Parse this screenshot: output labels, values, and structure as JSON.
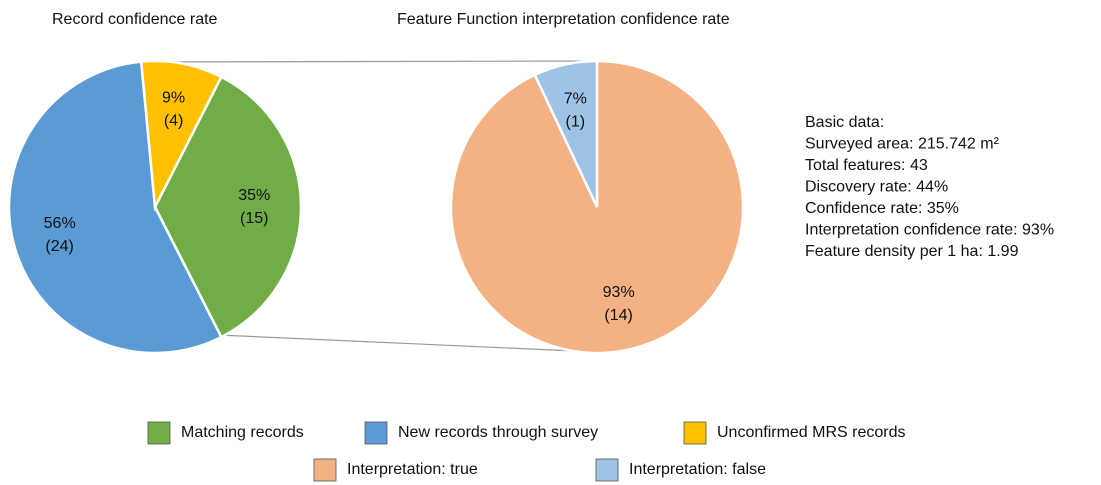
{
  "chart_data": [
    {
      "type": "pie",
      "title": "Record confidence rate",
      "categories": [
        "Matching records",
        "New records through survey",
        "Unconfirmed MRS records"
      ],
      "values": [
        35,
        56,
        9
      ],
      "value_labels": [
        "35%",
        "56%",
        "9%"
      ],
      "count_labels": [
        "(15)",
        "(24)",
        "(4)"
      ],
      "colors": [
        "#70ad47",
        "#5b9bd5",
        "#ffc000"
      ]
    },
    {
      "type": "pie",
      "title": "Feature Function interpretation confidence rate",
      "categories": [
        "Interpretation: true",
        "Interpretation: false"
      ],
      "values": [
        93,
        7
      ],
      "value_labels": [
        "93%",
        "7%"
      ],
      "count_labels": [
        "(14)",
        "(1)"
      ],
      "colors": [
        "#f4b183",
        "#9dc3e6"
      ],
      "annotations": [
        "Basic data:",
        "Surveyed area: 215.742 m²",
        "Total features: 43",
        "Discovery rate: 44%",
        "Confidence rate: 35%",
        "Interpretation confidence rate: 93%",
        "Feature density per 1 ha: 1.99"
      ]
    }
  ]
}
